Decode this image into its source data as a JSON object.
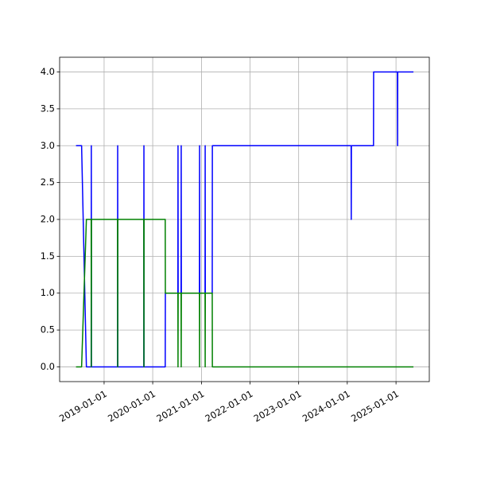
{
  "chart_data": {
    "type": "line",
    "xlim": [
      "2018-02-01",
      "2025-09-08"
    ],
    "ylim": [
      -0.2,
      4.2
    ],
    "xticks": [
      "2019-01-01",
      "2020-01-01",
      "2021-01-01",
      "2022-01-01",
      "2023-01-01",
      "2024-01-01",
      "2025-01-01"
    ],
    "yticks": [
      {
        "value": 0,
        "label": "0.0"
      },
      {
        "value": 0.5,
        "label": "0.5"
      },
      {
        "value": 1,
        "label": "1.0"
      },
      {
        "value": 1.5,
        "label": "1.5"
      },
      {
        "value": 2,
        "label": "2.0"
      },
      {
        "value": 2.5,
        "label": "2.5"
      },
      {
        "value": 3,
        "label": "3.0"
      },
      {
        "value": 3.5,
        "label": "3.5"
      },
      {
        "value": 4,
        "label": "4.0"
      }
    ],
    "grid": true,
    "series": [
      {
        "color": "#0000ff",
        "x": [
          "2018-06-04",
          "2018-07-16",
          "2018-08-21",
          "2018-09-26",
          "2018-09-27",
          "2018-09-28",
          "2019-04-12",
          "2019-04-13",
          "2019-04-14",
          "2019-10-26",
          "2019-10-27",
          "2019-10-28",
          "2020-04-04",
          "2020-04-05",
          "2020-07-08",
          "2020-07-09",
          "2020-07-10",
          "2020-08-01",
          "2020-08-02",
          "2020-08-03",
          "2020-12-17",
          "2020-12-18",
          "2020-12-19",
          "2021-01-28",
          "2021-01-29",
          "2021-01-30",
          "2021-03-23",
          "2021-03-24",
          "2024-01-30",
          "2024-01-31",
          "2024-02-01",
          "2024-07-16",
          "2024-07-17",
          "2025-01-12",
          "2025-01-13",
          "2025-01-14",
          "2025-05-12"
        ],
        "values": [
          3,
          3,
          0,
          0,
          3,
          0,
          0,
          3,
          0,
          0,
          3,
          0,
          0,
          1,
          1,
          3,
          1,
          1,
          3,
          1,
          1,
          3,
          1,
          1,
          3,
          1,
          1,
          3,
          3,
          2,
          3,
          3,
          4,
          4,
          3,
          4,
          4
        ]
      },
      {
        "color": "#008000",
        "x": [
          "2018-06-04",
          "2018-07-16",
          "2018-08-21",
          "2018-09-26",
          "2018-09-27",
          "2018-09-28",
          "2019-04-12",
          "2019-04-13",
          "2019-04-14",
          "2019-10-26",
          "2019-10-27",
          "2019-10-28",
          "2020-04-04",
          "2020-04-05",
          "2020-07-08",
          "2020-07-09",
          "2020-07-10",
          "2020-08-01",
          "2020-08-02",
          "2020-08-03",
          "2020-12-17",
          "2020-12-18",
          "2020-12-19",
          "2021-01-28",
          "2021-01-29",
          "2021-01-30",
          "2021-03-23",
          "2021-03-24",
          "2025-05-12"
        ],
        "values": [
          0,
          0,
          2,
          2,
          0,
          2,
          2,
          0,
          2,
          2,
          0,
          2,
          2,
          1,
          1,
          0,
          1,
          1,
          0,
          1,
          1,
          0,
          1,
          1,
          0,
          1,
          1,
          0,
          0
        ]
      }
    ]
  }
}
